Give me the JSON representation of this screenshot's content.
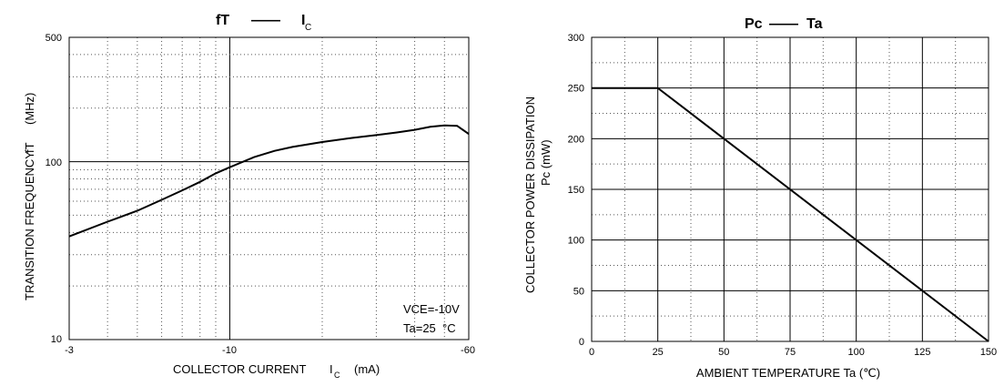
{
  "chart_data": [
    {
      "type": "line",
      "title": {
        "main": "fT",
        "dash": "——",
        "ic": "I",
        "ic_sub": "C"
      },
      "xlabel": {
        "main": "COLLECTOR CURRENT",
        "ic": "I",
        "ic_sub": "C",
        "unit": "(mA)"
      },
      "ylabel": {
        "main": "TRANSITION FREQUENCY",
        "sym": "fT",
        "unit": "(MHz)"
      },
      "x_scale": "log",
      "y_scale": "log",
      "xlim": [
        -3,
        -60
      ],
      "ylim": [
        10,
        500
      ],
      "x_ticks": [
        -3,
        -10,
        -60
      ],
      "x_tick_labels": [
        "-3",
        "-10",
        "-60"
      ],
      "y_ticks": [
        10,
        100,
        500
      ],
      "y_tick_labels": [
        "10",
        "100",
        "500"
      ],
      "grid": true,
      "annotations": [
        "VCE=-10V",
        "Ta=25",
        "°C"
      ],
      "series": [
        {
          "x": [
            -3,
            -4,
            -5,
            -6,
            -7,
            -8,
            -9,
            -10,
            -12,
            -14,
            -16,
            -20,
            -25,
            -30,
            -35,
            -40,
            -45,
            -50,
            -55,
            -60
          ],
          "y": [
            38,
            46,
            53,
            61,
            69,
            77,
            86,
            93,
            106,
            115,
            121,
            129,
            136,
            141,
            146,
            151,
            157,
            160,
            159,
            143
          ]
        }
      ]
    },
    {
      "type": "line",
      "title": {
        "left": "Pc",
        "dash": "——",
        "right": "Ta"
      },
      "xlabel": "AMBIENT TEMPERATURE Ta (℃)",
      "ylabel": {
        "main": "COLLECTOR POWER DISSIPATION",
        "sub": "Pc (mW)"
      },
      "xlim": [
        0,
        150
      ],
      "ylim": [
        0,
        300
      ],
      "x_ticks": [
        0,
        25,
        50,
        75,
        100,
        125,
        150
      ],
      "y_ticks": [
        0,
        50,
        100,
        150,
        200,
        250,
        300
      ],
      "x_tick_labels": [
        "0",
        "25",
        "50",
        "75",
        "100",
        "125",
        "150"
      ],
      "y_tick_labels": [
        "0",
        "50",
        "100",
        "150",
        "200",
        "250",
        "300"
      ],
      "grid": true,
      "series": [
        {
          "x": [
            0,
            25,
            150
          ],
          "y": [
            250,
            250,
            0
          ]
        }
      ]
    }
  ]
}
